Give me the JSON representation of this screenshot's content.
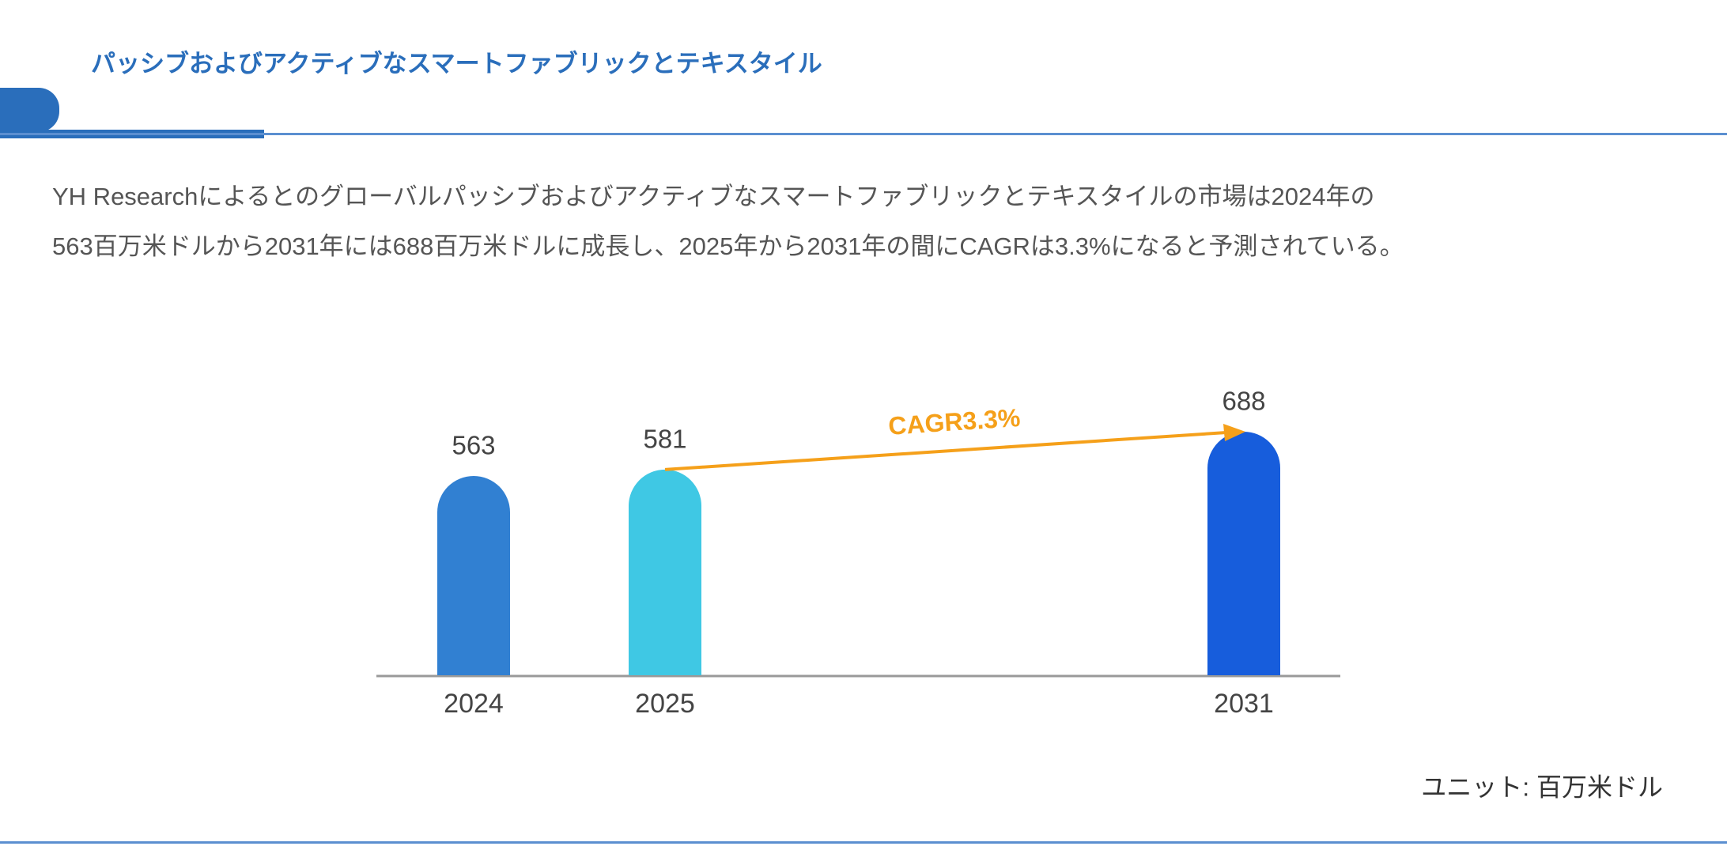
{
  "header": {
    "title": "パッシブおよびアクティブなスマートファブリックとテキスタイル"
  },
  "description_lines": [
    "YH Researchによるとのグローバルパッシブおよびアクティブなスマートファブリックとテキスタイルの市場は2024年の",
    "563百万米ドルから2031年には688百万米ドルに成長し、2025年から2031年の間にCAGRは3.3%になると予測されている。"
  ],
  "chart_data": {
    "type": "bar",
    "categories": [
      "2024",
      "2025",
      "2031"
    ],
    "values": [
      563,
      581,
      688
    ],
    "colors": [
      "#3180d2",
      "#3fc8e4",
      "#175ddc"
    ],
    "annotation": "CAGR3.3%",
    "annotation_color": "#f5a01a",
    "unit": "ユニット: 百万米ドル"
  }
}
